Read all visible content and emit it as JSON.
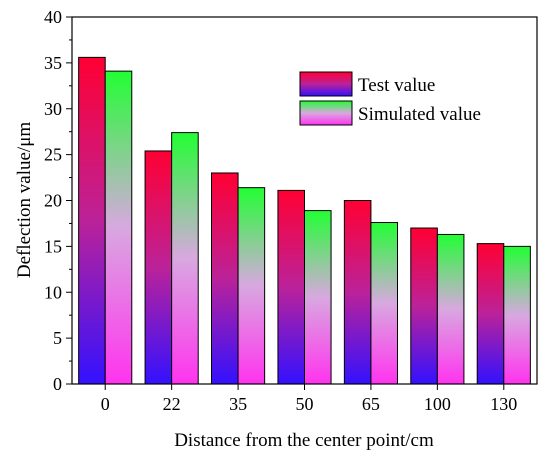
{
  "chart_data": {
    "type": "bar",
    "title": "",
    "xlabel": "Distance from the center point/cm",
    "ylabel": "Deflection value/μm",
    "categories": [
      "0",
      "22",
      "35",
      "50",
      "65",
      "100",
      "130"
    ],
    "series": [
      {
        "name": "Test value",
        "values": [
          35.6,
          25.4,
          23.0,
          21.1,
          20.0,
          17.0,
          15.3
        ]
      },
      {
        "name": "Simulated value",
        "values": [
          34.1,
          27.4,
          21.4,
          18.9,
          17.6,
          16.3,
          15.0
        ]
      }
    ],
    "ylim": [
      0,
      40
    ],
    "yticks": [
      0,
      5,
      10,
      15,
      20,
      25,
      30,
      35,
      40
    ],
    "legend_position": "top-right",
    "grid": false,
    "colors": {
      "test_top": "#ff0033",
      "test_mid": "#cc2299",
      "test_bottom": "#3311ff",
      "sim_top": "#22ff33",
      "sim_mid": "#d0a0e0",
      "sim_bottom": "#ff33ee"
    }
  }
}
